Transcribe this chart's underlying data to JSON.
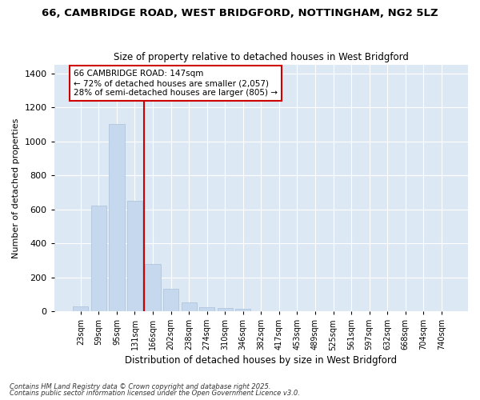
{
  "title_line1": "66, CAMBRIDGE ROAD, WEST BRIDGFORD, NOTTINGHAM, NG2 5LZ",
  "title_line2": "Size of property relative to detached houses in West Bridgford",
  "xlabel": "Distribution of detached houses by size in West Bridgford",
  "ylabel": "Number of detached properties",
  "categories": [
    "23sqm",
    "59sqm",
    "95sqm",
    "131sqm",
    "166sqm",
    "202sqm",
    "238sqm",
    "274sqm",
    "310sqm",
    "346sqm",
    "382sqm",
    "417sqm",
    "453sqm",
    "489sqm",
    "525sqm",
    "561sqm",
    "597sqm",
    "632sqm",
    "668sqm",
    "704sqm",
    "740sqm"
  ],
  "values": [
    30,
    620,
    1100,
    650,
    280,
    130,
    50,
    25,
    20,
    15,
    0,
    0,
    0,
    0,
    0,
    0,
    0,
    0,
    0,
    0,
    0
  ],
  "bar_color": "#c5d8ee",
  "bar_edge_color": "#aac0d8",
  "vline_color": "#cc0000",
  "ylim": [
    0,
    1450
  ],
  "yticks": [
    0,
    200,
    400,
    600,
    800,
    1000,
    1200,
    1400
  ],
  "annotation_text": "66 CAMBRIDGE ROAD: 147sqm\n← 72% of detached houses are smaller (2,057)\n28% of semi-detached houses are larger (805) →",
  "annotation_box_color": "#cc0000",
  "background_color": "#dde8f5",
  "fig_background": "#ffffff",
  "grid_color": "#ffffff",
  "footer_line1": "Contains HM Land Registry data © Crown copyright and database right 2025.",
  "footer_line2": "Contains public sector information licensed under the Open Government Licence v3.0."
}
